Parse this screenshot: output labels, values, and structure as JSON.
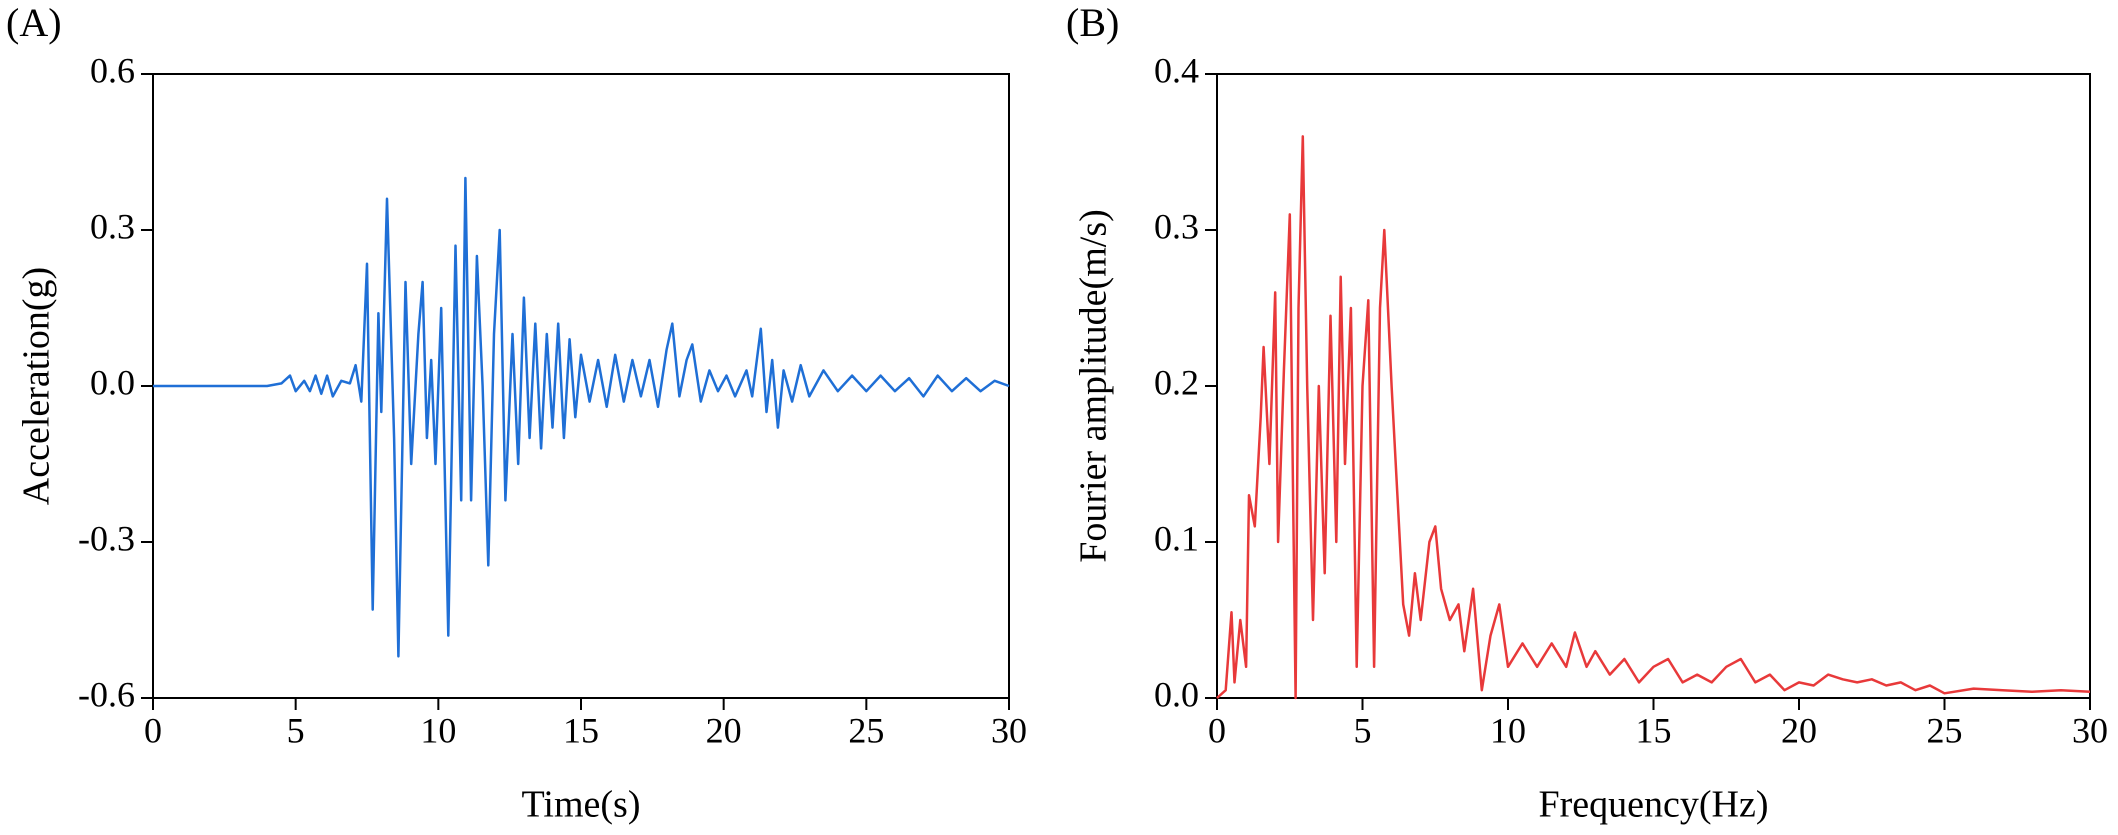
{
  "chart_data": [
    {
      "type": "line",
      "label": "(A)",
      "xlabel": "Time(s)",
      "ylabel": "Acceleration(g)",
      "color": "#1f6fd6",
      "xlim": [
        0,
        30
      ],
      "ylim": [
        -0.6,
        0.6
      ],
      "xticks": [
        0,
        5,
        10,
        15,
        20,
        25,
        30
      ],
      "yticks": [
        -0.6,
        -0.3,
        {
          "value": 0,
          "label": "0.0"
        },
        0.3,
        0.6
      ],
      "x": [
        0,
        4,
        4.5,
        4.8,
        5,
        5.3,
        5.5,
        5.7,
        5.9,
        6.1,
        6.3,
        6.6,
        6.9,
        7.1,
        7.3,
        7.5,
        7.7,
        7.9,
        8.0,
        8.2,
        8.45,
        8.6,
        8.85,
        9.05,
        9.3,
        9.45,
        9.6,
        9.75,
        9.9,
        10.1,
        10.35,
        10.6,
        10.8,
        10.95,
        11.15,
        11.35,
        11.55,
        11.75,
        11.95,
        12.15,
        12.35,
        12.6,
        12.8,
        13,
        13.2,
        13.4,
        13.6,
        13.8,
        14,
        14.2,
        14.4,
        14.6,
        14.8,
        15,
        15.3,
        15.6,
        15.9,
        16.2,
        16.5,
        16.8,
        17.1,
        17.4,
        17.7,
        18.0,
        18.2,
        18.45,
        18.7,
        18.9,
        19.2,
        19.5,
        19.8,
        20.1,
        20.4,
        20.8,
        21.0,
        21.3,
        21.5,
        21.7,
        21.9,
        22.1,
        22.4,
        22.7,
        23,
        23.5,
        24,
        24.5,
        25,
        25.5,
        26,
        26.5,
        27,
        27.5,
        28,
        28.5,
        29,
        29.5,
        30
      ],
      "values": [
        0,
        0,
        0.005,
        0.02,
        -0.01,
        0.01,
        -0.01,
        0.02,
        -0.015,
        0.02,
        -0.02,
        0.01,
        0.005,
        0.04,
        -0.03,
        0.235,
        -0.43,
        0.14,
        -0.05,
        0.36,
        -0.1,
        -0.52,
        0.2,
        -0.15,
        0.1,
        0.2,
        -0.1,
        0.05,
        -0.15,
        0.15,
        -0.48,
        0.27,
        -0.22,
        0.4,
        -0.22,
        0.25,
        0,
        -0.345,
        0.1,
        0.3,
        -0.22,
        0.1,
        -0.15,
        0.17,
        -0.1,
        0.12,
        -0.12,
        0.1,
        -0.08,
        0.12,
        -0.1,
        0.09,
        -0.06,
        0.06,
        -0.03,
        0.05,
        -0.04,
        0.06,
        -0.03,
        0.05,
        -0.02,
        0.05,
        -0.04,
        0.07,
        0.12,
        -0.02,
        0.05,
        0.08,
        -0.03,
        0.03,
        -0.01,
        0.02,
        -0.02,
        0.03,
        -0.02,
        0.11,
        -0.05,
        0.05,
        -0.08,
        0.03,
        -0.03,
        0.04,
        -0.02,
        0.03,
        -0.01,
        0.02,
        -0.01,
        0.02,
        -0.01,
        0.015,
        -0.02,
        0.02,
        -0.01,
        0.015,
        -0.01,
        0.01,
        0
      ]
    },
    {
      "type": "line",
      "label": "(B)",
      "xlabel": "Frequency(Hz)",
      "ylabel": "Fourier amplitude(m/s)",
      "color": "#e8393a",
      "xlim": [
        0,
        30
      ],
      "ylim": [
        0,
        0.4
      ],
      "xticks": [
        0,
        5,
        10,
        15,
        20,
        25,
        30
      ],
      "yticks": [
        {
          "value": 0,
          "label": "0.0"
        },
        0.1,
        0.2,
        0.3,
        0.4
      ],
      "x": [
        0,
        0.3,
        0.5,
        0.6,
        0.8,
        1.0,
        1.1,
        1.3,
        1.5,
        1.6,
        1.8,
        2.0,
        2.1,
        2.3,
        2.5,
        2.6,
        2.7,
        2.8,
        2.95,
        3.1,
        3.3,
        3.5,
        3.7,
        3.9,
        4.1,
        4.25,
        4.4,
        4.6,
        4.8,
        5.0,
        5.2,
        5.4,
        5.6,
        5.75,
        5.9,
        6.0,
        6.2,
        6.4,
        6.6,
        6.8,
        7.0,
        7.3,
        7.5,
        7.7,
        8.0,
        8.3,
        8.5,
        8.8,
        9.1,
        9.4,
        9.7,
        10,
        10.5,
        11,
        11.5,
        12,
        12.3,
        12.7,
        13,
        13.5,
        14,
        14.5,
        15,
        15.5,
        16,
        16.5,
        17,
        17.5,
        18,
        18.5,
        19,
        19.5,
        20,
        20.5,
        21,
        21.5,
        22,
        22.5,
        23,
        23.5,
        24,
        24.5,
        25,
        26,
        27,
        28,
        29,
        30
      ],
      "values": [
        0,
        0.005,
        0.055,
        0.01,
        0.05,
        0.02,
        0.13,
        0.11,
        0.18,
        0.225,
        0.15,
        0.26,
        0.1,
        0.21,
        0.31,
        0.15,
        0,
        0.25,
        0.36,
        0.2,
        0.05,
        0.2,
        0.08,
        0.245,
        0.1,
        0.27,
        0.15,
        0.25,
        0.02,
        0.2,
        0.255,
        0.02,
        0.25,
        0.3,
        0.24,
        0.2,
        0.13,
        0.06,
        0.04,
        0.08,
        0.05,
        0.1,
        0.11,
        0.07,
        0.05,
        0.06,
        0.03,
        0.07,
        0.005,
        0.04,
        0.06,
        0.02,
        0.035,
        0.02,
        0.035,
        0.02,
        0.042,
        0.02,
        0.03,
        0.015,
        0.025,
        0.01,
        0.02,
        0.025,
        0.01,
        0.015,
        0.01,
        0.02,
        0.025,
        0.01,
        0.015,
        0.005,
        0.01,
        0.008,
        0.015,
        0.012,
        0.01,
        0.012,
        0.008,
        0.01,
        0.005,
        0.008,
        0.003,
        0.006,
        0.005,
        0.004,
        0.005,
        0.004
      ]
    }
  ]
}
